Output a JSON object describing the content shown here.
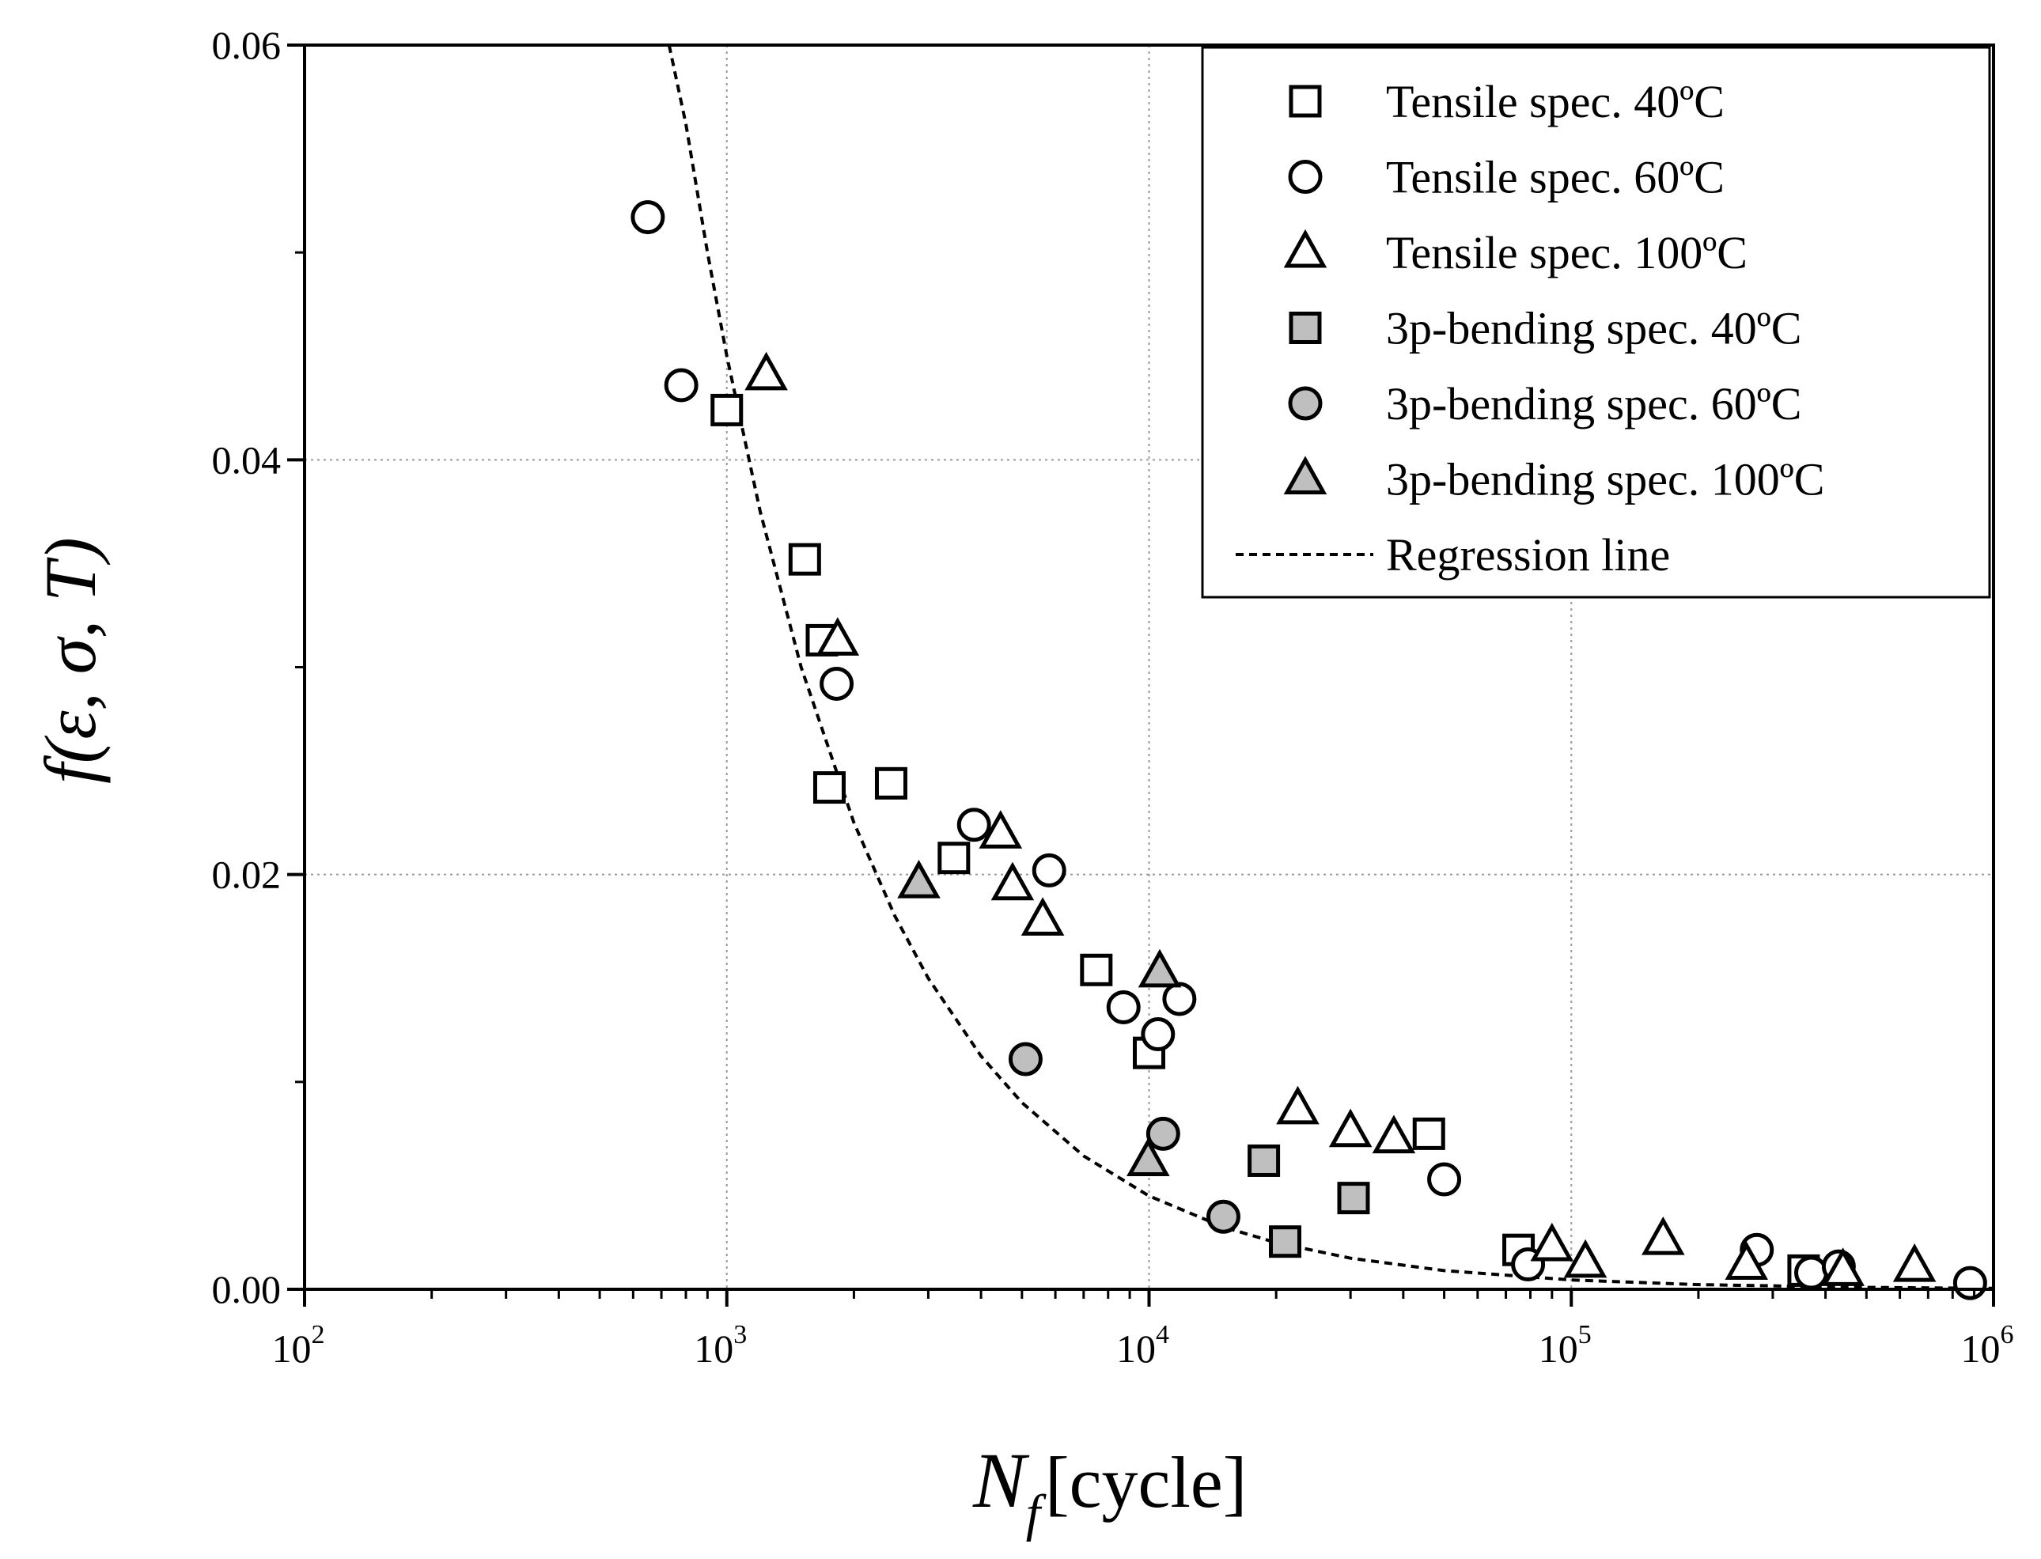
{
  "chart_data": {
    "type": "scatter",
    "title": "",
    "xlabel": "N_f [cycle]",
    "xlabel_main": "N",
    "xlabel_sub": "f",
    "xlabel_unit": "[cycle]",
    "ylabel": "f(ε, σ, T)",
    "xscale": "log",
    "xlim": [
      100,
      1000000
    ],
    "ylim": [
      0,
      0.06
    ],
    "grid": true,
    "legend_position": "top-right",
    "x_ticks": [
      {
        "value": 100,
        "base": "10",
        "exp": "2"
      },
      {
        "value": 1000,
        "base": "10",
        "exp": "3"
      },
      {
        "value": 10000,
        "base": "10",
        "exp": "4"
      },
      {
        "value": 100000,
        "base": "10",
        "exp": "5"
      },
      {
        "value": 1000000,
        "base": "10",
        "exp": "6"
      }
    ],
    "y_ticks": [
      {
        "value": 0,
        "label": "0.00"
      },
      {
        "value": 0.02,
        "label": "0.02"
      },
      {
        "value": 0.04,
        "label": "0.04"
      },
      {
        "value": 0.06,
        "label": "0.06"
      }
    ],
    "series": [
      {
        "name": "Tensile spec. 40ºC",
        "marker": "square",
        "fill": "#ffffff",
        "points": [
          [
            1000,
            0.0424
          ],
          [
            1530,
            0.0352
          ],
          [
            1680,
            0.0313
          ],
          [
            1750,
            0.0242
          ],
          [
            2450,
            0.0244
          ],
          [
            3450,
            0.0208
          ],
          [
            7500,
            0.0154
          ],
          [
            10000,
            0.0114
          ],
          [
            46000,
            0.0075
          ],
          [
            75000,
            0.0019
          ],
          [
            355000,
            0.0009
          ]
        ]
      },
      {
        "name": "Tensile spec. 60ºC",
        "marker": "circle",
        "fill": "#ffffff",
        "points": [
          [
            650,
            0.0517
          ],
          [
            780,
            0.0436
          ],
          [
            1820,
            0.0292
          ],
          [
            3850,
            0.0224
          ],
          [
            5800,
            0.0202
          ],
          [
            8700,
            0.0136
          ],
          [
            11800,
            0.014
          ],
          [
            10500,
            0.0123
          ],
          [
            50000,
            0.0053
          ],
          [
            79000,
            0.0012
          ],
          [
            275000,
            0.0019
          ],
          [
            370000,
            0.0008
          ],
          [
            430000,
            0.0011
          ],
          [
            880000,
            0.0003
          ]
        ]
      },
      {
        "name": "Tensile spec. 100ºC",
        "marker": "triangle",
        "fill": "#ffffff",
        "points": [
          [
            1240,
            0.0441
          ],
          [
            1830,
            0.0313
          ],
          [
            4450,
            0.022
          ],
          [
            4750,
            0.0195
          ],
          [
            5600,
            0.0178
          ],
          [
            22500,
            0.0087
          ],
          [
            30000,
            0.0076
          ],
          [
            38000,
            0.0073
          ],
          [
            90000,
            0.0021
          ],
          [
            108000,
            0.0013
          ],
          [
            165000,
            0.0024
          ],
          [
            260000,
            0.0012
          ],
          [
            440000,
            0.0009
          ],
          [
            650000,
            0.0011
          ]
        ]
      },
      {
        "name": "3p-bending spec. 40ºC",
        "marker": "square",
        "fill": "#bfbfbf",
        "points": [
          [
            18700,
            0.0062
          ],
          [
            21000,
            0.0023
          ],
          [
            30500,
            0.0044
          ]
        ]
      },
      {
        "name": "3p-bending spec. 60ºC",
        "marker": "circle",
        "fill": "#bfbfbf",
        "points": [
          [
            5100,
            0.0111
          ],
          [
            10800,
            0.0075
          ],
          [
            15000,
            0.0035
          ]
        ]
      },
      {
        "name": "3p-bending spec. 100ºC",
        "marker": "triangle",
        "fill": "#bfbfbf",
        "points": [
          [
            2850,
            0.0196
          ],
          [
            10600,
            0.0153
          ],
          [
            9950,
            0.0062
          ]
        ]
      }
    ],
    "regression": {
      "name": "Regression line",
      "points": [
        [
          730,
          0.06
        ],
        [
          800,
          0.0562
        ],
        [
          900,
          0.05
        ],
        [
          1000,
          0.045
        ],
        [
          1200,
          0.0375
        ],
        [
          1500,
          0.03
        ],
        [
          2000,
          0.0225
        ],
        [
          2500,
          0.018
        ],
        [
          3000,
          0.015
        ],
        [
          4000,
          0.01125
        ],
        [
          5000,
          0.009
        ],
        [
          7000,
          0.00643
        ],
        [
          10000,
          0.0045
        ],
        [
          15000,
          0.003
        ],
        [
          20000,
          0.00225
        ],
        [
          30000,
          0.0015
        ],
        [
          50000,
          0.0009
        ],
        [
          100000,
          0.00045
        ],
        [
          200000,
          0.000225
        ],
        [
          500000,
          9e-05
        ],
        [
          1000000,
          4.5e-05
        ]
      ]
    }
  }
}
